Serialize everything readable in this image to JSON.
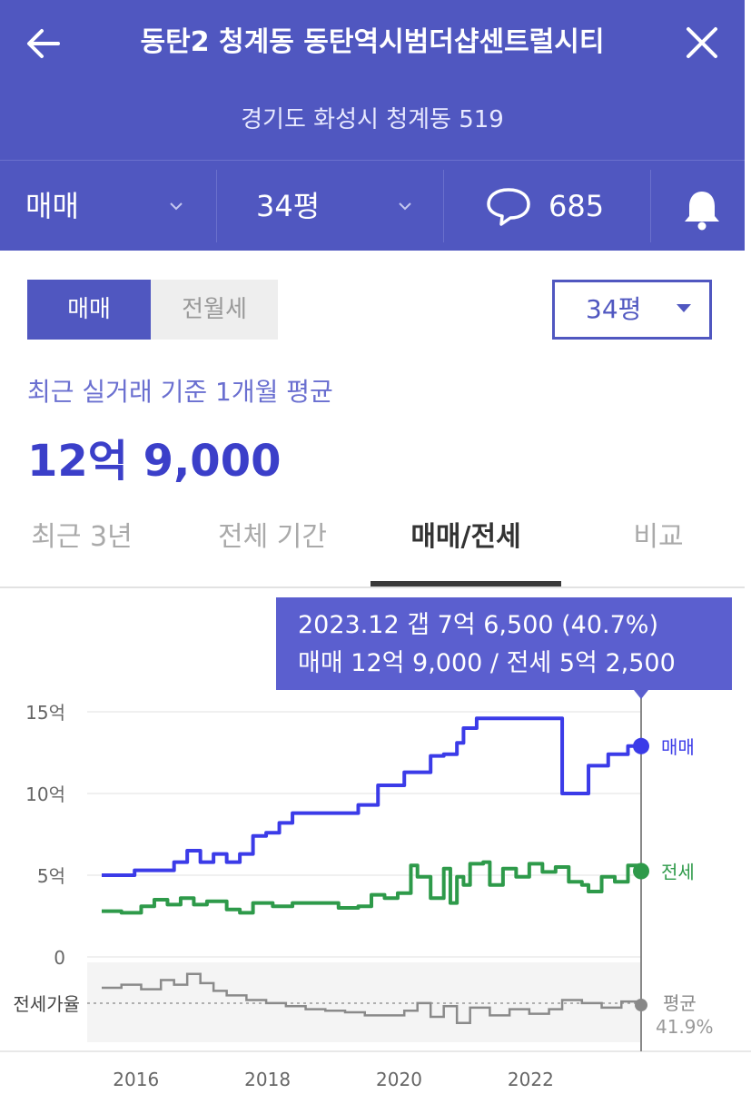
{
  "header": {
    "title": "동탄2 청계동 동탄역시범더샵센트럴시티",
    "address": "경기도 화성시 청계동 519",
    "deal_type": "매매",
    "size": "34평",
    "comment_count": "685",
    "bg_color": "#5057c0"
  },
  "controls": {
    "toggle": [
      "매매",
      "전월세"
    ],
    "size_select": "34평"
  },
  "summary": {
    "basis": "최근 실거래 기준 1개월 평균",
    "price": "12억 9,000"
  },
  "tabs": [
    "최근 3년",
    "전체 기간",
    "매매/전세",
    "비교"
  ],
  "tooltip": {
    "line1": "2023.12  갭 7억 6,500 (40.7%)",
    "line2": "매매 12억 9,000 / 전세 5억 2,500"
  },
  "chart_data": {
    "type": "line",
    "y_unit": "억",
    "ylim": [
      0,
      15
    ],
    "yticks": [
      "15억",
      "10억",
      "5억",
      "0"
    ],
    "xticks": [
      "2016",
      "2018",
      "2020",
      "2022"
    ],
    "x_range": [
      2015.7,
      2023.9
    ],
    "series": [
      {
        "name": "매매",
        "color": "#3b3be8",
        "points": [
          [
            2015.7,
            5.0
          ],
          [
            2016.0,
            5.0
          ],
          [
            2016.2,
            5.3
          ],
          [
            2016.6,
            5.3
          ],
          [
            2016.8,
            5.8
          ],
          [
            2017.0,
            6.5
          ],
          [
            2017.2,
            5.8
          ],
          [
            2017.4,
            6.3
          ],
          [
            2017.6,
            5.8
          ],
          [
            2017.8,
            6.3
          ],
          [
            2018.0,
            7.4
          ],
          [
            2018.2,
            7.6
          ],
          [
            2018.4,
            8.2
          ],
          [
            2018.6,
            8.8
          ],
          [
            2019.0,
            8.8
          ],
          [
            2019.4,
            8.8
          ],
          [
            2019.6,
            9.3
          ],
          [
            2019.9,
            10.5
          ],
          [
            2020.1,
            10.5
          ],
          [
            2020.3,
            11.3
          ],
          [
            2020.5,
            11.3
          ],
          [
            2020.7,
            12.3
          ],
          [
            2020.9,
            12.4
          ],
          [
            2021.1,
            13.1
          ],
          [
            2021.2,
            14.0
          ],
          [
            2021.4,
            14.6
          ],
          [
            2022.0,
            14.6
          ],
          [
            2022.3,
            14.6
          ],
          [
            2022.6,
            14.6
          ],
          [
            2022.7,
            10.0
          ],
          [
            2023.0,
            10.0
          ],
          [
            2023.1,
            11.7
          ],
          [
            2023.4,
            12.4
          ],
          [
            2023.7,
            12.9
          ],
          [
            2023.9,
            12.9
          ]
        ]
      },
      {
        "name": "전세",
        "color": "#2e9a4a",
        "points": [
          [
            2015.7,
            2.8
          ],
          [
            2016.0,
            2.7
          ],
          [
            2016.3,
            3.1
          ],
          [
            2016.5,
            3.5
          ],
          [
            2016.7,
            3.2
          ],
          [
            2016.9,
            3.6
          ],
          [
            2017.1,
            3.2
          ],
          [
            2017.3,
            3.4
          ],
          [
            2017.6,
            2.9
          ],
          [
            2017.8,
            2.7
          ],
          [
            2018.0,
            3.3
          ],
          [
            2018.3,
            3.1
          ],
          [
            2018.6,
            3.3
          ],
          [
            2019.0,
            3.3
          ],
          [
            2019.3,
            3.0
          ],
          [
            2019.6,
            3.1
          ],
          [
            2019.8,
            3.8
          ],
          [
            2020.0,
            3.6
          ],
          [
            2020.2,
            3.9
          ],
          [
            2020.4,
            5.6
          ],
          [
            2020.5,
            4.9
          ],
          [
            2020.7,
            3.6
          ],
          [
            2020.9,
            5.4
          ],
          [
            2021.0,
            3.3
          ],
          [
            2021.1,
            4.9
          ],
          [
            2021.2,
            4.4
          ],
          [
            2021.3,
            5.7
          ],
          [
            2021.5,
            5.8
          ],
          [
            2021.6,
            4.4
          ],
          [
            2021.8,
            5.4
          ],
          [
            2022.0,
            4.9
          ],
          [
            2022.2,
            5.7
          ],
          [
            2022.4,
            5.2
          ],
          [
            2022.6,
            5.5
          ],
          [
            2022.8,
            4.6
          ],
          [
            2023.0,
            4.4
          ],
          [
            2023.1,
            4.0
          ],
          [
            2023.3,
            4.9
          ],
          [
            2023.5,
            4.6
          ],
          [
            2023.7,
            5.6
          ],
          [
            2023.9,
            5.25
          ]
        ]
      }
    ],
    "ratio": {
      "label": "전세가율",
      "avg_label": "평균",
      "avg_value": "41.9%",
      "avg": 41.9,
      "color": "#8a8a8a",
      "points": [
        [
          2015.7,
          52
        ],
        [
          2016.0,
          54
        ],
        [
          2016.3,
          51
        ],
        [
          2016.6,
          57
        ],
        [
          2016.8,
          54
        ],
        [
          2017.0,
          61
        ],
        [
          2017.2,
          55
        ],
        [
          2017.4,
          50
        ],
        [
          2017.6,
          47
        ],
        [
          2017.9,
          44
        ],
        [
          2018.2,
          42
        ],
        [
          2018.5,
          40
        ],
        [
          2018.8,
          38
        ],
        [
          2019.1,
          37
        ],
        [
          2019.4,
          36
        ],
        [
          2019.7,
          34
        ],
        [
          2020.0,
          34
        ],
        [
          2020.3,
          37
        ],
        [
          2020.5,
          42
        ],
        [
          2020.7,
          33
        ],
        [
          2020.9,
          40
        ],
        [
          2021.1,
          29
        ],
        [
          2021.3,
          39
        ],
        [
          2021.6,
          34
        ],
        [
          2021.9,
          38
        ],
        [
          2022.2,
          35
        ],
        [
          2022.5,
          38
        ],
        [
          2022.7,
          44
        ],
        [
          2023.0,
          42
        ],
        [
          2023.3,
          39
        ],
        [
          2023.6,
          43
        ],
        [
          2023.9,
          40.7
        ]
      ]
    }
  }
}
